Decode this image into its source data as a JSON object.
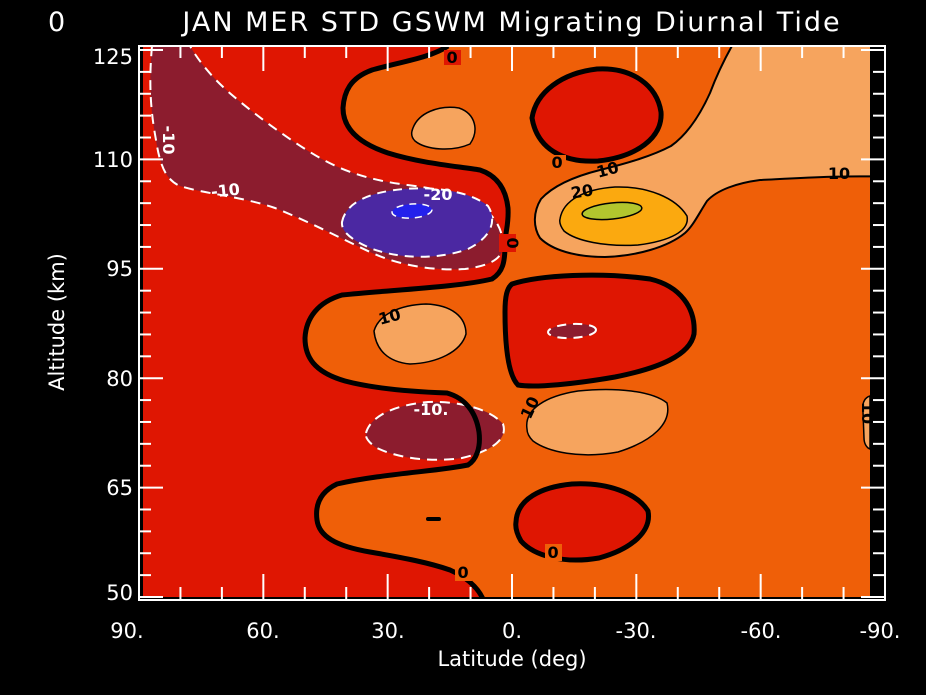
{
  "title": {
    "prefix": "0",
    "text": "JAN MER STD GSWM Migrating Diurnal Tide"
  },
  "axes": {
    "x": {
      "label": "Latitude (deg)",
      "tick_labels": [
        "90.",
        "60.",
        "30.",
        "0.",
        "-30.",
        "-60.",
        "-90."
      ],
      "tick_values": [
        90,
        60,
        30,
        0,
        -30,
        -60,
        -90
      ],
      "minor_step": 10,
      "range": [
        90,
        -90
      ]
    },
    "y": {
      "label": "Altitude (km)",
      "tick_labels": [
        "125",
        "110",
        "95",
        "80",
        "65",
        "50"
      ],
      "tick_values": [
        125,
        110,
        95,
        80,
        65,
        50
      ],
      "minor_step": 3,
      "range": [
        50,
        125
      ]
    }
  },
  "annotations": [
    {
      "text": "-10",
      "level": -10,
      "color": "white"
    },
    {
      "text": "-10",
      "level": -10,
      "color": "white"
    },
    {
      "text": "-20",
      "level": -20,
      "color": "white"
    },
    {
      "text": "-10.",
      "level": -10,
      "color": "white"
    },
    {
      "text": "0",
      "level": 0,
      "color": "black"
    },
    {
      "text": "0",
      "level": 0,
      "color": "black"
    },
    {
      "text": "0",
      "level": 0,
      "color": "black"
    },
    {
      "text": "0",
      "level": 0,
      "color": "black"
    },
    {
      "text": "0",
      "level": 0,
      "color": "black"
    },
    {
      "text": "10",
      "level": 10,
      "color": "black"
    },
    {
      "text": "20",
      "level": 20,
      "color": "black"
    },
    {
      "text": "10",
      "level": 10,
      "color": "black"
    },
    {
      "text": "10",
      "level": 10,
      "color": "black"
    },
    {
      "text": "10",
      "level": 10,
      "color": "black"
    },
    {
      "text": "10",
      "level": 10,
      "color": "black"
    }
  ],
  "colors": {
    "background": "#000000",
    "axis": "#ffffff",
    "zero_contour": "#000000",
    "negative_contour": "#ffffff",
    "fill_blue": "#2421EC",
    "fill_purple": "#4B28A2",
    "fill_maroon": "#8C1C2E",
    "fill_red": "#DF1602",
    "fill_orange": "#EF5F08",
    "fill_peach": "#F6A45E",
    "fill_amber": "#FBA90F",
    "fill_green": "#B2C62E"
  },
  "chart_data": {
    "type": "contour",
    "title": "JAN MER STD GSWM Migrating Diurnal Tide",
    "xlabel": "Latitude (deg)",
    "ylabel": "Altitude (km)",
    "xlim": [
      90,
      -90
    ],
    "ylim": [
      50,
      125
    ],
    "contour_levels": [
      -30,
      -20,
      -10,
      0,
      10,
      20,
      30
    ],
    "contour_styles": {
      "negative": "white dashed",
      "zero": "thick solid black",
      "positive": "thin solid black"
    },
    "fill_scale": [
      {
        "range": "< -30",
        "hex": "#2421EC"
      },
      {
        "range": "-30 to -20",
        "hex": "#4B28A2"
      },
      {
        "range": "-20 to -10",
        "hex": "#8C1C2E"
      },
      {
        "range": "-10 to 0",
        "hex": "#DF1602"
      },
      {
        "range": "0 to 10",
        "hex": "#EF5F08"
      },
      {
        "range": "10 to 20",
        "hex": "#F6A45E"
      },
      {
        "range": "20 to 30",
        "hex": "#FBA90F"
      },
      {
        "range": "> 30",
        "hex": "#B2C62E"
      }
    ],
    "features": [
      {
        "desc": "deep minimum < -30 (blue core in purple -20 cell)",
        "lat": 24,
        "alt": 103
      },
      {
        "desc": "maroon -10 band from NH pole top-left down to ~(20N,100km)",
        "lat": 55,
        "alt": 115
      },
      {
        "desc": "maximum > 30 (green core in amber 20 cell)",
        "lat": -24,
        "alt": 103
      },
      {
        "desc": "peach 10-20 cell at SH top-right corner",
        "lat": -75,
        "alt": 120
      },
      {
        "desc": "negative cell (red, 0 loop) top-center",
        "lat": -20,
        "alt": 116
      },
      {
        "desc": "peach 10 cell mid-left",
        "lat": 22,
        "alt": 102,
        "note": "inside 0 loop near 88 km"
      },
      {
        "desc": "maroon -10 blob",
        "lat": 20,
        "alt": 75
      },
      {
        "desc": "peach 10 cell",
        "lat": -15,
        "alt": 68
      },
      {
        "desc": "negative cell (red, 0 loop) bottom-right",
        "lat": -17,
        "alt": 54
      },
      {
        "desc": "zero line weaves vertically near equator from top to bottom",
        "lat": 0,
        "alt": 88
      }
    ]
  }
}
